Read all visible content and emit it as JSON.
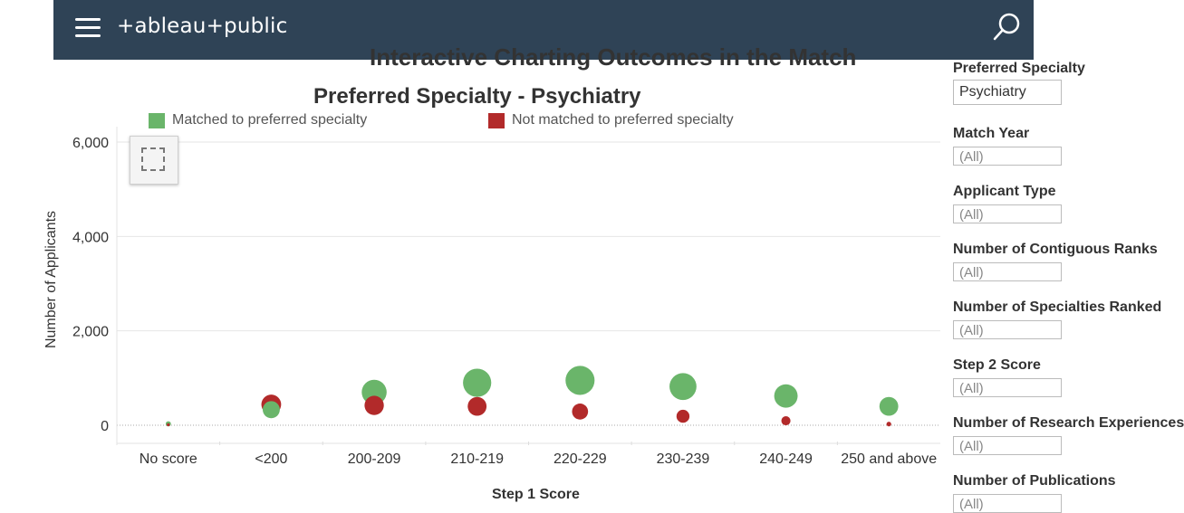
{
  "header": {
    "logo_text": "+ableau+public",
    "icons": [
      "menu-icon",
      "search-icon"
    ],
    "bar_color": "#2f4356"
  },
  "dashboard_heading": "Interactive Charting Outcomes in the Match",
  "chart_data": {
    "type": "scatter",
    "title": "Preferred Specialty - Psychiatry",
    "xlabel": "Step 1 Score",
    "ylabel": "Number of Applicants",
    "categories": [
      "No score",
      "<200",
      "200-209",
      "210-219",
      "220-229",
      "230-239",
      "240-249",
      "250 and above"
    ],
    "y_ticks": [
      "0",
      "2,000",
      "4,000",
      "6,000"
    ],
    "ylim": [
      0,
      6000
    ],
    "grid": true,
    "legend_position": "top",
    "series": [
      {
        "name": "Matched to preferred specialty",
        "color": "#6ab56a",
        "values": [
          30,
          330,
          700,
          900,
          950,
          820,
          620,
          400
        ]
      },
      {
        "name": "Not matched to preferred specialty",
        "color": "#b22a2a",
        "values": [
          10,
          440,
          420,
          400,
          290,
          190,
          95,
          25
        ]
      }
    ]
  },
  "filters": [
    {
      "label": "Preferred Specialty",
      "value": "Psychiatry"
    },
    {
      "label": "Match Year",
      "value": "(All)"
    },
    {
      "label": "Applicant Type",
      "value": "(All)"
    },
    {
      "label": "Number of Contiguous Ranks",
      "value": "(All)"
    },
    {
      "label": "Number of Specialties Ranked",
      "value": "(All)"
    },
    {
      "label": "Step 2 Score",
      "value": "(All)"
    },
    {
      "label": "Number of Research Experiences",
      "value": "(All)"
    },
    {
      "label": "Number of Publications",
      "value": "(All)"
    }
  ]
}
